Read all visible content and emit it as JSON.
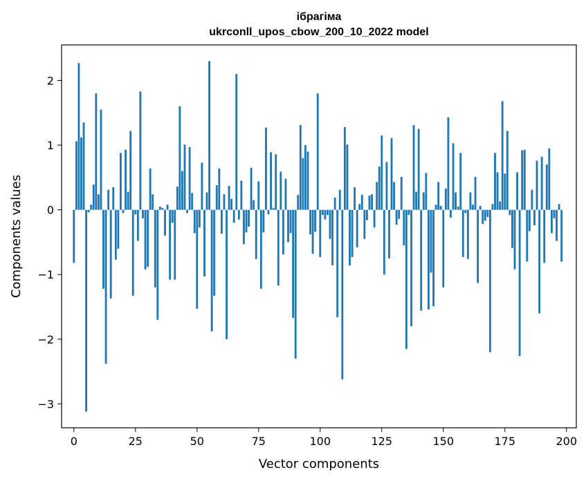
{
  "chart_data": {
    "type": "bar",
    "title": "ібрагіма",
    "subtitle": "ukrconll_upos_cbow_200_10_2022 model",
    "xlabel": "Vector components",
    "ylabel": "Components values",
    "xlim": [
      -5,
      204
    ],
    "ylim": [
      -3.37,
      2.55
    ],
    "xticks": [
      0,
      25,
      50,
      75,
      100,
      125,
      150,
      175,
      200
    ],
    "xtick_labels": [
      "0",
      "25",
      "50",
      "75",
      "100",
      "125",
      "150",
      "175",
      "200"
    ],
    "yticks": [
      -3,
      -2,
      -1,
      0,
      1,
      2
    ],
    "ytick_labels": [
      "−3",
      "−2",
      "−1",
      "0",
      "1",
      "2"
    ],
    "bar_color": "#1f77b4",
    "grid": false,
    "values": [
      -0.82,
      1.06,
      2.27,
      1.12,
      1.35,
      -3.12,
      -0.04,
      0.08,
      0.39,
      1.8,
      0.24,
      1.55,
      -1.22,
      -2.38,
      0.31,
      -1.37,
      0.35,
      -0.77,
      -0.6,
      0.88,
      -0.05,
      0.93,
      0.28,
      1.22,
      -1.33,
      -0.07,
      -0.48,
      1.83,
      -0.13,
      -0.92,
      -0.88,
      0.64,
      0.24,
      -1.2,
      -1.7,
      0.05,
      0.03,
      -0.4,
      0.08,
      -1.08,
      -0.2,
      -1.08,
      0.36,
      1.6,
      0.6,
      1.01,
      -0.05,
      0.97,
      0.26,
      -0.36,
      -1.53,
      -0.27,
      0.73,
      -1.03,
      0.27,
      2.3,
      -1.88,
      -1.33,
      0.38,
      0.64,
      -0.37,
      0.24,
      -2.0,
      0.37,
      0.17,
      -0.2,
      2.1,
      -0.15,
      0.45,
      -0.53,
      -0.35,
      -0.26,
      0.65,
      0.15,
      -0.76,
      0.44,
      -1.22,
      -0.35,
      1.27,
      -0.07,
      0.89,
      0.03,
      0.86,
      -1.17,
      0.59,
      -0.69,
      0.48,
      -0.5,
      -0.36,
      -1.67,
      -2.3,
      0.23,
      1.31,
      0.8,
      1.0,
      0.9,
      -0.38,
      -0.68,
      -0.34,
      1.8,
      -0.73,
      -0.08,
      -0.15,
      -0.08,
      -0.45,
      -0.86,
      0.19,
      -1.66,
      0.31,
      -2.62,
      1.28,
      1.01,
      -0.86,
      -0.73,
      0.35,
      -0.58,
      0.09,
      0.23,
      -0.45,
      -0.16,
      0.22,
      0.24,
      -0.27,
      0.43,
      0.67,
      1.15,
      -1.0,
      0.74,
      -0.75,
      1.11,
      0.43,
      -0.23,
      -0.14,
      0.51,
      -0.55,
      -2.15,
      -0.08,
      -1.8,
      1.31,
      0.28,
      1.25,
      -1.56,
      0.27,
      0.57,
      -1.54,
      -0.97,
      -1.49,
      0.08,
      0.43,
      0.06,
      -1.2,
      0.33,
      1.43,
      -0.12,
      1.03,
      0.27,
      0.05,
      0.88,
      -0.73,
      -0.05,
      -0.76,
      0.27,
      0.08,
      0.51,
      -1.13,
      0.06,
      -0.22,
      -0.17,
      -0.11,
      -2.2,
      0.09,
      0.88,
      0.58,
      0.13,
      1.68,
      0.56,
      1.22,
      -0.08,
      -0.59,
      -0.92,
      0.58,
      -2.26,
      0.92,
      0.93,
      -0.8,
      -0.33,
      0.31,
      -0.24,
      0.76,
      -1.6,
      0.82,
      -0.82,
      0.7,
      0.95,
      -0.36,
      -0.13,
      -0.48,
      0.09,
      -0.8
    ]
  }
}
